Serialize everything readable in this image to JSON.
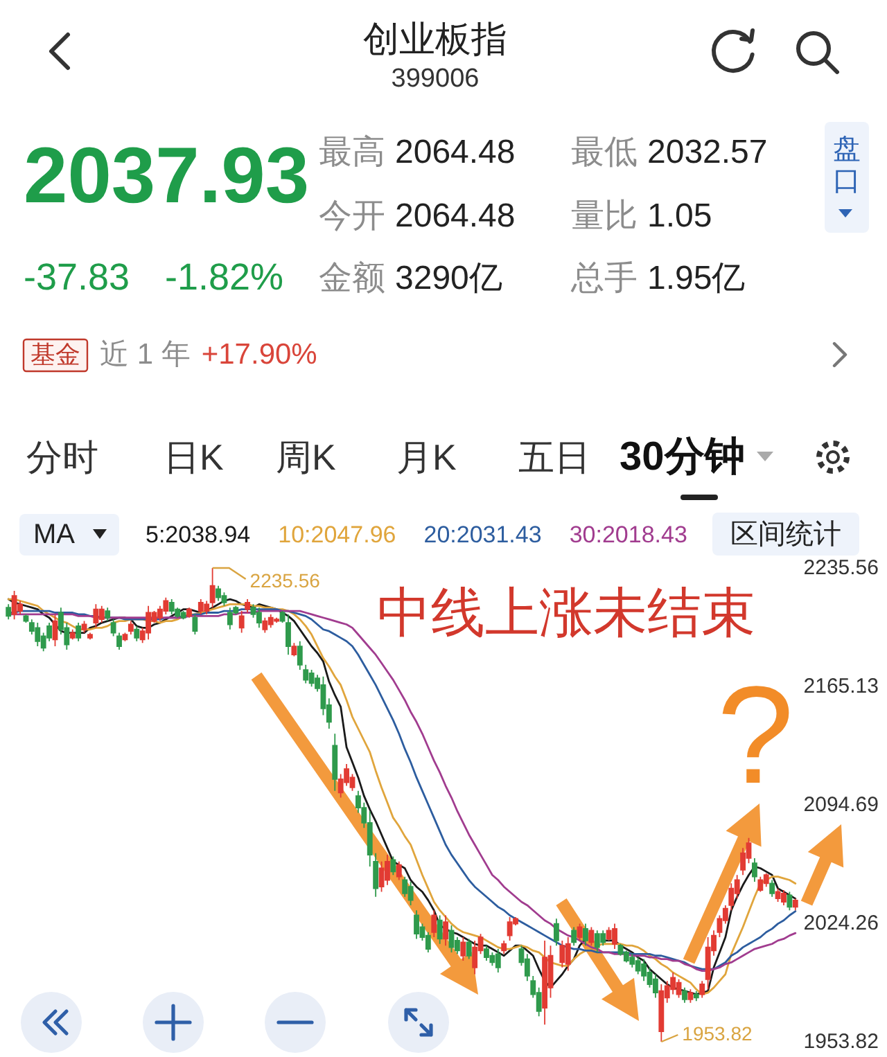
{
  "chart_data": {
    "type": "candlestick",
    "title": "创业板指",
    "subtitle": "399006",
    "categories": [
      null,
      null,
      null,
      null,
      null,
      null,
      null,
      null,
      null,
      null,
      null,
      null,
      null,
      null,
      null,
      null,
      null,
      null,
      null,
      null,
      null,
      null,
      null,
      null,
      null,
      null,
      null,
      null,
      null,
      null,
      null,
      null,
      null,
      null,
      null,
      null,
      null,
      null,
      null,
      null,
      null,
      null,
      null,
      null,
      null,
      null,
      null,
      null,
      null,
      null,
      null,
      null,
      null,
      null,
      null,
      null,
      null,
      null,
      null,
      null,
      null,
      null,
      null,
      null,
      null,
      null,
      null,
      null,
      null,
      null,
      null,
      null,
      null,
      null,
      null,
      null,
      null,
      null,
      null,
      null,
      null,
      null,
      null,
      null,
      null,
      null,
      null,
      null,
      null,
      null,
      null,
      null,
      null,
      null,
      null,
      null,
      null,
      null,
      null,
      null,
      null,
      null,
      null,
      null,
      null,
      null,
      null,
      null,
      null,
      null,
      null,
      null,
      null,
      null,
      null,
      null,
      null,
      null,
      null,
      null,
      null,
      null,
      null,
      null,
      null,
      null,
      null,
      null,
      null,
      null,
      null,
      null,
      null,
      null,
      null,
      null
    ],
    "ohlc": [
      [
        2212,
        2214,
        2205,
        2207
      ],
      [
        2208,
        2222,
        2205,
        2219
      ],
      [
        2210,
        2216,
        2208,
        2214
      ],
      [
        2207,
        2208,
        2203,
        2204
      ],
      [
        2203,
        2205,
        2196,
        2198
      ],
      [
        2200,
        2203,
        2189,
        2192
      ],
      [
        2195,
        2197,
        2186,
        2188
      ],
      [
        2201,
        2203,
        2192,
        2194
      ],
      [
        2193,
        2208,
        2189,
        2204
      ],
      [
        2209,
        2212,
        2196,
        2199
      ],
      [
        2200,
        2203,
        2187,
        2190
      ],
      [
        2194,
        2199,
        2193,
        2197
      ],
      [
        2201,
        2203,
        2192,
        2194
      ],
      [
        2199,
        2204,
        2197,
        2202
      ],
      [
        2194,
        2197,
        2193,
        2196
      ],
      [
        2203,
        2214,
        2200,
        2211
      ],
      [
        2205,
        2213,
        2203,
        2211
      ],
      [
        2210,
        2212,
        2204,
        2206
      ],
      [
        2203,
        2205,
        2195,
        2197
      ],
      [
        2195,
        2197,
        2187,
        2189
      ],
      [
        2193,
        2197,
        2192,
        2196
      ],
      [
        2198,
        2204,
        2196,
        2202
      ],
      [
        2199,
        2201,
        2192,
        2194
      ],
      [
        2193,
        2200,
        2191,
        2198
      ],
      [
        2197,
        2213,
        2193,
        2209
      ],
      [
        2204,
        2210,
        2203,
        2209
      ],
      [
        2206,
        2213,
        2204,
        2211
      ],
      [
        2210,
        2218,
        2208,
        2216
      ],
      [
        2215,
        2217,
        2208,
        2210
      ],
      [
        2211,
        2212,
        2206,
        2207
      ],
      [
        2209,
        2210,
        2205,
        2206
      ],
      [
        2207,
        2212,
        2206,
        2211
      ],
      [
        2206,
        2208,
        2196,
        2198
      ],
      [
        2210,
        2217,
        2208,
        2215
      ],
      [
        2210,
        2216,
        2208,
        2214
      ],
      [
        2215,
        2235.56,
        2212,
        2225
      ],
      [
        2223,
        2225,
        2216,
        2218
      ],
      [
        2219,
        2221,
        2213,
        2215
      ],
      [
        2209,
        2212,
        2199,
        2202
      ],
      [
        2212,
        2213,
        2208,
        2209
      ],
      [
        2200,
        2210,
        2197,
        2207
      ],
      [
        2211,
        2217,
        2209,
        2215
      ],
      [
        2212,
        2214,
        2206,
        2208
      ],
      [
        2209,
        2212,
        2200,
        2203
      ],
      [
        2199,
        2206,
        2197,
        2204
      ],
      [
        2202,
        2208,
        2200,
        2206
      ],
      [
        2204,
        2206,
        2203,
        2205
      ],
      [
        2209,
        2210,
        2203,
        2204
      ],
      [
        2203,
        2208,
        2184,
        2189
      ],
      [
        2184,
        2191,
        2183,
        2189
      ],
      [
        2189,
        2192,
        2175,
        2178
      ],
      [
        2175,
        2178,
        2167,
        2169
      ],
      [
        2173,
        2175,
        2165,
        2167
      ],
      [
        2170,
        2172,
        2162,
        2164
      ],
      [
        2166,
        2171,
        2148,
        2152
      ],
      [
        2154,
        2158,
        2140,
        2144
      ],
      [
        2130,
        2137,
        2103,
        2110
      ],
      [
        2102,
        2113,
        2099,
        2110
      ],
      [
        2108,
        2119,
        2106,
        2116
      ],
      [
        2105,
        2113,
        2103,
        2111
      ],
      [
        2100,
        2103,
        2090,
        2093
      ],
      [
        2093,
        2096,
        2081,
        2084
      ],
      [
        2084,
        2091,
        2058,
        2065
      ],
      [
        2061,
        2066,
        2040,
        2045
      ],
      [
        2046,
        2061,
        2043,
        2057
      ],
      [
        2050,
        2065,
        2047,
        2061
      ],
      [
        2062,
        2064,
        2053,
        2055
      ],
      [
        2052,
        2061,
        2050,
        2059
      ],
      [
        2050,
        2052,
        2040,
        2042
      ],
      [
        2046,
        2049,
        2035,
        2038
      ],
      [
        2029,
        2032,
        2015,
        2018
      ],
      [
        2022,
        2024,
        2014,
        2016
      ],
      [
        2017,
        2019,
        2007,
        2009
      ],
      [
        2019,
        2032,
        2016,
        2029
      ],
      [
        2026,
        2029,
        2012,
        2015
      ],
      [
        2015,
        2029,
        2011,
        2025
      ],
      [
        2020,
        2023,
        2007,
        2010
      ],
      [
        2014,
        2016,
        2006,
        2008
      ],
      [
        2005,
        2016,
        2002,
        2013
      ],
      [
        2013,
        2015,
        2003,
        2005
      ],
      [
        1998,
        2014,
        1994,
        2010
      ],
      [
        2008,
        2018,
        2006,
        2016
      ],
      [
        2009,
        2011,
        2002,
        2004
      ],
      [
        2005,
        2007,
        1999,
        2001
      ],
      [
        2006,
        2009,
        1995,
        1998
      ],
      [
        2008,
        2014,
        2006,
        2012
      ],
      [
        2017,
        2028,
        2014,
        2025
      ],
      [
        2024,
        2028,
        2023,
        2027
      ],
      [
        2009,
        2011,
        1999,
        2001
      ],
      [
        2003,
        2006,
        1990,
        1993
      ],
      [
        1990,
        1993,
        1980,
        1982
      ],
      [
        1983,
        1986,
        1969,
        1972
      ],
      [
        1974,
        2014,
        1964,
        2004
      ],
      [
        1986,
        2011,
        1980,
        2005
      ],
      [
        2024,
        2027,
        2011,
        2014
      ],
      [
        2001,
        2014,
        1998,
        2011
      ],
      [
        2000,
        2016,
        1996,
        2012
      ],
      [
        2020,
        2022,
        2011,
        2013
      ],
      [
        2016,
        2024,
        2014,
        2022
      ],
      [
        2021,
        2024,
        2011,
        2014
      ],
      [
        2013,
        2022,
        2011,
        2020
      ],
      [
        2018,
        2020,
        2007,
        2010
      ],
      [
        2018,
        2020,
        2011,
        2013
      ],
      [
        2015,
        2022,
        2014,
        2020
      ],
      [
        2012,
        2024,
        2009,
        2021
      ],
      [
        2011,
        2012,
        2005,
        2006
      ],
      [
        2007,
        2008,
        2001,
        2002
      ],
      [
        2004,
        2006,
        1998,
        2000
      ],
      [
        2002,
        2004,
        1994,
        1996
      ],
      [
        2000,
        2003,
        1990,
        1993
      ],
      [
        1995,
        1998,
        1986,
        1988
      ],
      [
        1991,
        1994,
        1980,
        1983
      ],
      [
        1960,
        1988,
        1953.82,
        1984
      ],
      [
        1980,
        1990,
        1977,
        1987
      ],
      [
        1985,
        1995,
        1982,
        1992
      ],
      [
        1982,
        1991,
        1980,
        1989
      ],
      [
        1984,
        1986,
        1977,
        1979
      ],
      [
        1979,
        1985,
        1977,
        1983
      ],
      [
        1982,
        1984,
        1978,
        1980
      ],
      [
        1982,
        1990,
        1980,
        1988
      ],
      [
        1991,
        2016,
        1985,
        2010
      ],
      [
        2008,
        2020,
        2005,
        2017
      ],
      [
        2019,
        2029,
        2016,
        2027
      ],
      [
        2026,
        2035,
        2024,
        2033
      ],
      [
        2035,
        2048,
        2032,
        2045
      ],
      [
        2042,
        2053,
        2039,
        2050
      ],
      [
        2056,
        2069,
        2053,
        2066
      ],
      [
        2063,
        2075,
        2060,
        2072
      ],
      [
        2060,
        2063,
        2049,
        2052
      ],
      [
        2044,
        2052,
        2043,
        2050
      ],
      [
        2048,
        2054,
        2046,
        2053
      ],
      [
        2048,
        2050,
        2040,
        2042
      ],
      [
        2039,
        2045,
        2037,
        2043
      ],
      [
        2037,
        2044,
        2035,
        2042
      ],
      [
        2041,
        2043,
        2032,
        2034
      ],
      [
        2034,
        2039,
        2032,
        2037.93
      ]
    ],
    "colors": [
      "#2f9a4c",
      "#e23b33",
      "#e23b33",
      "#2f9a4c",
      "#2f9a4c",
      "#2f9a4c",
      "#2f9a4c",
      "#2f9a4c",
      "#e23b33",
      "#2f9a4c",
      "#2f9a4c",
      "#e23b33",
      "#2f9a4c",
      "#e23b33",
      "#e23b33",
      "#e23b33",
      "#e23b33",
      "#2f9a4c",
      "#2f9a4c",
      "#2f9a4c",
      "#e23b33",
      "#e23b33",
      "#2f9a4c",
      "#e23b33",
      "#e23b33",
      "#e23b33",
      "#e23b33",
      "#e23b33",
      "#2f9a4c",
      "#2f9a4c",
      "#2f9a4c",
      "#e23b33",
      "#2f9a4c",
      "#e23b33",
      "#e23b33",
      "#e23b33",
      "#2f9a4c",
      "#2f9a4c",
      "#2f9a4c",
      "#2f9a4c",
      "#e23b33",
      "#e23b33",
      "#2f9a4c",
      "#2f9a4c",
      "#e23b33",
      "#e23b33",
      "#e23b33",
      "#2f9a4c",
      "#2f9a4c",
      "#e23b33",
      "#2f9a4c",
      "#2f9a4c",
      "#2f9a4c",
      "#2f9a4c",
      "#2f9a4c",
      "#2f9a4c",
      "#2f9a4c",
      "#e23b33",
      "#e23b33",
      "#e23b33",
      "#2f9a4c",
      "#2f9a4c",
      "#2f9a4c",
      "#2f9a4c",
      "#e23b33",
      "#e23b33",
      "#2f9a4c",
      "#e23b33",
      "#2f9a4c",
      "#2f9a4c",
      "#2f9a4c",
      "#2f9a4c",
      "#2f9a4c",
      "#e23b33",
      "#2f9a4c",
      "#e23b33",
      "#2f9a4c",
      "#2f9a4c",
      "#e23b33",
      "#2f9a4c",
      "#e23b33",
      "#e23b33",
      "#2f9a4c",
      "#2f9a4c",
      "#2f9a4c",
      "#e23b33",
      "#e23b33",
      "#e23b33",
      "#2f9a4c",
      "#2f9a4c",
      "#2f9a4c",
      "#2f9a4c",
      "#e23b33",
      "#e23b33",
      "#2f9a4c",
      "#e23b33",
      "#e23b33",
      "#2f9a4c",
      "#e23b33",
      "#2f9a4c",
      "#e23b33",
      "#2f9a4c",
      "#2f9a4c",
      "#e23b33",
      "#e23b33",
      "#2f9a4c",
      "#2f9a4c",
      "#2f9a4c",
      "#2f9a4c",
      "#2f9a4c",
      "#2f9a4c",
      "#2f9a4c",
      "#e23b33",
      "#e23b33",
      "#e23b33",
      "#e23b33",
      "#2f9a4c",
      "#e23b33",
      "#2f9a4c",
      "#e23b33",
      "#e23b33",
      "#e23b33",
      "#e23b33",
      "#e23b33",
      "#e23b33",
      "#e23b33",
      "#e23b33",
      "#e23b33",
      "#2f9a4c",
      "#e23b33",
      "#e23b33",
      "#2f9a4c",
      "#e23b33",
      "#e23b33",
      "#2f9a4c",
      "#e23b33"
    ],
    "series": [
      {
        "name": "5:2038.94",
        "type": "line",
        "color": "#1a1a1a",
        "values": [
          2217,
          2215,
          2214,
          2213,
          2212,
          2211,
          2208,
          2206,
          2202,
          2198,
          2197,
          2197,
          2197,
          2197,
          2200,
          2201,
          2203,
          2204,
          2205,
          2206,
          2206,
          2205,
          2201,
          2200,
          2200,
          2202,
          2203,
          2205,
          2207,
          2209,
          2211,
          2211,
          2210,
          2209,
          2210,
          2212,
          2214,
          2216,
          2217,
          2216,
          2214,
          2213,
          2212,
          2214,
          2213,
          2212,
          2211,
          2209,
          2207,
          2204,
          2199,
          2194,
          2189,
          2185,
          2180,
          2168,
          2160,
          2153,
          2129,
          2120,
          2111,
          2100,
          2092,
          2085,
          2077,
          2069,
          2061,
          2059,
          2057,
          2050,
          2046,
          2043,
          2038,
          2032,
          2023,
          2021,
          2019,
          2018,
          2016,
          2014,
          2012,
          2011,
          2011,
          2009,
          2007,
          2005,
          2008,
          2011,
          2011,
          2008,
          2005,
          1997,
          1990,
          1986,
          1990,
          1994,
          1999,
          2003,
          2011,
          2015,
          null,
          null,
          2014,
          2014,
          2014,
          2011,
          2009,
          2007,
          2004,
          2002,
          1997,
          1994,
          1991,
          1988,
          1986,
          1985,
          1984,
          1983,
          1982,
          1983,
          1984,
          1998,
          2007,
          2016,
          2032,
          2040,
          2047,
          2053,
          2058,
          2057,
          2055,
          2053,
          2045,
          2043,
          2041,
          2038.94
        ]
      },
      {
        "name": "10:2047.96",
        "type": "line",
        "color": "#e0a53c",
        "values": [
          2217,
          2217,
          2216,
          2215,
          2214,
          2213,
          2210,
          2208,
          2206,
          2204,
          2203,
          2201,
          2199,
          2199,
          2199,
          2200,
          2200,
          2201,
          2203,
          2204,
          2204,
          2205,
          2205,
          2205,
          2204,
          2204,
          2203,
          2204,
          2204,
          2205,
          2207,
          2208,
          2208,
          2209,
          2210,
          2211,
          2212,
          2213,
          2214,
          2214,
          2214,
          2214,
          2213,
          2213,
          2212,
          2212,
          2211,
          2211,
          2210,
          2208,
          2205,
          2201,
          2196,
          2189,
          2182,
          2177,
          2171,
          2166,
          2157,
          2147,
          2140,
          2133,
          2126,
          2115,
          2105,
          2096,
          2087,
          2082,
          2076,
          2071,
          2062,
          2053,
          2045,
          2037,
          2032,
          2028,
          2024,
          2021,
          2019,
          2018,
          2017,
          2016,
          2014,
          2012,
          2010,
          2009,
          2009,
          2010,
          2011,
          2010,
          2008,
          2007,
          2004,
          2001,
          2000,
          1999,
          1999,
          2003,
          2006,
          2008,
          2010,
          2011,
          2012,
          2012,
          2012,
          2012,
          2011,
          2011,
          2010,
          2008,
          2005,
          2003,
          2000,
          1998,
          1995,
          1993,
          1991,
          1989,
          1985,
          1982,
          1983,
          1986,
          1990,
          1994,
          2006,
          2014,
          2022,
          2031,
          2040,
          2048,
          2050,
          2052,
          2052,
          2051,
          2050,
          2047.96
        ]
      },
      {
        "name": "20:2031.43",
        "type": "line",
        "color": "#2d5d9f",
        "values": [
          2209,
          2209,
          2210,
          2210,
          2210,
          2210,
          2210,
          2210,
          2209,
          2209,
          2209,
          2209,
          2208,
          2208,
          2207,
          2207,
          2206,
          2206,
          2206,
          2206,
          2205,
          2205,
          2205,
          2205,
          2205,
          2205,
          2205,
          2206,
          2206,
          2206,
          2207,
          2207,
          2208,
          2208,
          2209,
          2209,
          2209,
          2210,
          2210,
          2210,
          2211,
          2211,
          2211,
          2211,
          2211,
          2211,
          2211,
          2210,
          2210,
          2209,
          2208,
          2207,
          2205,
          2202,
          2199,
          2198,
          2196,
          2194,
          2192,
          2189,
          2184,
          2178,
          2172,
          2166,
          2159,
          2152,
          2145,
          2137,
          2128,
          2120,
          2111,
          2103,
          2095,
          2087,
          2079,
          2071,
          2065,
          2060,
          2055,
          2050,
          2046,
          2043,
          2040,
          2037,
          2034,
          2032,
          2029,
          2027,
          2025,
          2023,
          2021,
          2019,
          2017,
          2015,
          2013,
          2011,
          2010,
          2009,
          2009,
          2008,
          2008,
          2007,
          2007,
          2007,
          2007,
          2007,
          2007,
          2006,
          2006,
          2006,
          2006,
          2005,
          2005,
          2004,
          2003,
          2002,
          2001,
          1999,
          1998,
          1997,
          1997,
          1997,
          1999,
          2001,
          2005,
          2007,
          2010,
          2012,
          2014,
          2016,
          2019,
          2021,
          2024,
          2026,
          2029,
          2031.43
        ]
      },
      {
        "name": "30:2018.43",
        "type": "line",
        "color": "#a13c8f",
        "values": [
          2208,
          2208,
          2208,
          2208,
          2208,
          2208,
          2208,
          2208,
          2208,
          2208,
          2208,
          2208,
          2207,
          2207,
          2207,
          2206,
          2206,
          2206,
          2206,
          2206,
          2206,
          2206,
          2206,
          2206,
          2206,
          2206,
          2206,
          2206,
          2206,
          2206,
          2206,
          2207,
          2207,
          2207,
          2207,
          2207,
          2207,
          2208,
          2208,
          2208,
          2209,
          2209,
          2209,
          2210,
          2210,
          2210,
          2210,
          2210,
          2210,
          2210,
          2210,
          2209,
          2208,
          2207,
          2206,
          2205,
          2204,
          2203,
          2202,
          2200,
          2196,
          2192,
          2188,
          2184,
          2179,
          2174,
          2169,
          2163,
          2157,
          2150,
          2144,
          2137,
          2129,
          2121,
          2114,
          2106,
          2099,
          2091,
          2084,
          2077,
          2071,
          2065,
          2059,
          2053,
          2050,
          2046,
          2043,
          2040,
          2037,
          2035,
          2032,
          2029,
          2026,
          2024,
          2021,
          2019,
          2017,
          2016,
          2014,
          2012,
          2010,
          2009,
          2007,
          2007,
          2006,
          2006,
          2006,
          2005,
          2005,
          2005,
          2004,
          2004,
          2003,
          2003,
          2002,
          2002,
          2000,
          1999,
          1997,
          1996,
          1996,
          1997,
          1998,
          2000,
          2001,
          2003,
          2005,
          2007,
          2009,
          2010,
          2011,
          2012,
          2014,
          2015,
          2017,
          2018.43
        ]
      }
    ],
    "ylim": [
      1953.82,
      2235.56
    ],
    "yticks": [
      2235.56,
      2165.13,
      2094.69,
      2024.26,
      1953.82
    ],
    "tick_labels": "y",
    "legend": "top",
    "legend_title": "MA",
    "annotations": [
      "2037.93",
      "-37.83",
      "-1.82%",
      "最高",
      "2064.48",
      "最低",
      "2032.57",
      "今开",
      "2064.48",
      "量比",
      "1.05",
      "金额",
      "3290亿",
      "总手",
      "1.95亿",
      "盘口",
      "基金",
      "近 1 年",
      "+17.90%",
      "分时",
      "日K",
      "周K",
      "月K",
      "五日",
      "30分钟",
      "区间统计",
      "中线上涨未结束",
      "?",
      "2235.56",
      "1953.82"
    ]
  }
}
